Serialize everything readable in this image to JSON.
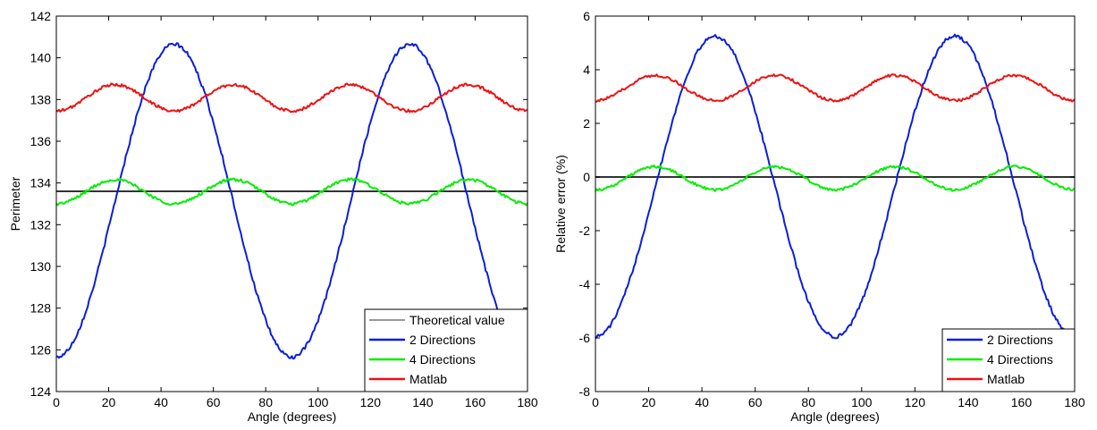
{
  "colors": {
    "blue": "#0a1fd6",
    "green": "#00ee00",
    "red": "#ee1111",
    "black": "#333333"
  },
  "chart_data": [
    {
      "type": "line",
      "xlabel": "Angle (degrees)",
      "ylabel": "Perimeter",
      "xlim": [
        0,
        180
      ],
      "ylim": [
        124,
        142
      ],
      "xticks": [
        0,
        20,
        40,
        60,
        80,
        100,
        120,
        140,
        160,
        180
      ],
      "yticks": [
        124,
        126,
        128,
        130,
        132,
        134,
        136,
        138,
        140,
        142
      ],
      "grid": false,
      "legend_position": "bottom-right",
      "series": [
        {
          "name": "Theoretical value",
          "color": "#333333",
          "width": 1,
          "model": {
            "kind": "const",
            "value": 133.6
          }
        },
        {
          "name": "2 Directions",
          "color": "#0a1fd6",
          "width": 2,
          "model": {
            "kind": "cos4",
            "mean": 133.15,
            "amp": -7.5,
            "noise": 0.09
          },
          "x": [
            0,
            22.5,
            45,
            67.5,
            90,
            112.5,
            135,
            157.5,
            180
          ],
          "y": [
            125.7,
            133.2,
            140.6,
            133.2,
            125.7,
            133.2,
            140.5,
            133.2,
            125.6
          ]
        },
        {
          "name": "4 Directions",
          "color": "#00ee00",
          "width": 2,
          "model": {
            "kind": "cos8",
            "mean": 133.58,
            "amp": -0.58,
            "noise": 0.07
          },
          "x": [
            0,
            22.5,
            45,
            67.5,
            90,
            112.5,
            135,
            157.5,
            180
          ],
          "y": [
            133.0,
            134.2,
            133.0,
            134.2,
            133.0,
            134.2,
            133.0,
            134.2,
            133.0
          ]
        },
        {
          "name": "Matlab",
          "color": "#ee1111",
          "width": 2,
          "model": {
            "kind": "cos8",
            "mean": 138.08,
            "amp": -0.63,
            "noise": 0.07
          },
          "x": [
            0,
            22.5,
            45,
            67.5,
            90,
            112.5,
            135,
            157.5,
            180
          ],
          "y": [
            137.5,
            138.7,
            137.5,
            138.7,
            137.5,
            138.7,
            137.4,
            138.7,
            137.5
          ]
        }
      ]
    },
    {
      "type": "line",
      "xlabel": "Angle (degrees)",
      "ylabel": "Relative error (%)",
      "xlim": [
        0,
        180
      ],
      "ylim": [
        -8,
        6
      ],
      "xticks": [
        0,
        20,
        40,
        60,
        80,
        100,
        120,
        140,
        160,
        180
      ],
      "yticks": [
        -8,
        -6,
        -4,
        -2,
        0,
        2,
        4,
        6
      ],
      "grid": false,
      "legend_position": "bottom-right",
      "series": [
        {
          "name": "",
          "color": "#333333",
          "width": 1,
          "model": {
            "kind": "const",
            "value": 0
          }
        },
        {
          "name": "2 Directions",
          "color": "#0a1fd6",
          "width": 2,
          "model": {
            "kind": "cos4",
            "mean": -0.35,
            "amp": -5.6,
            "noise": 0.07
          },
          "x": [
            0,
            22.5,
            45,
            67.5,
            90,
            112.5,
            135,
            157.5,
            180
          ],
          "y": [
            -6.0,
            -0.3,
            5.2,
            -0.3,
            -6.0,
            -0.3,
            5.1,
            -0.3,
            -6.0
          ]
        },
        {
          "name": "4 Directions",
          "color": "#00ee00",
          "width": 2,
          "model": {
            "kind": "cos8",
            "mean": -0.05,
            "amp": -0.43,
            "noise": 0.05
          },
          "x": [
            0,
            22.5,
            45,
            67.5,
            90,
            112.5,
            135,
            157.5,
            180
          ],
          "y": [
            -0.5,
            0.4,
            -0.5,
            0.4,
            -0.5,
            0.4,
            -0.5,
            0.4,
            -0.5
          ]
        },
        {
          "name": "Matlab",
          "color": "#ee1111",
          "width": 2,
          "model": {
            "kind": "cos8",
            "mean": 3.32,
            "amp": -0.47,
            "noise": 0.05
          },
          "x": [
            0,
            22.5,
            45,
            67.5,
            90,
            112.5,
            135,
            157.5,
            180
          ],
          "y": [
            2.85,
            3.8,
            2.85,
            3.8,
            2.85,
            3.8,
            2.8,
            3.8,
            2.85
          ]
        }
      ]
    }
  ]
}
